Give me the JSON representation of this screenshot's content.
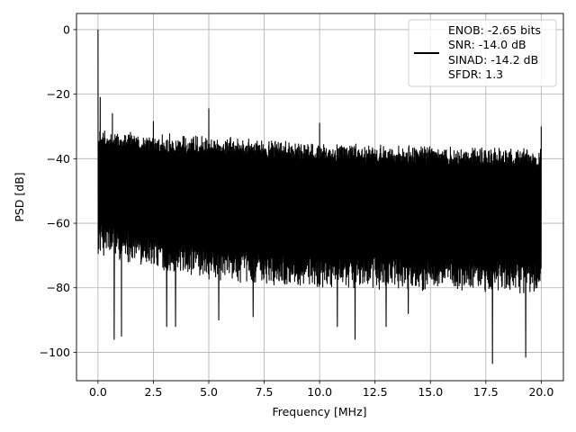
{
  "chart_data": {
    "type": "line",
    "title": "",
    "xlabel": "Frequency [MHz]",
    "ylabel": "PSD [dB]",
    "xlim": [
      -0.97,
      21.0
    ],
    "ylim": [
      -108.8,
      5.0
    ],
    "xticks": [
      0.0,
      2.5,
      5.0,
      7.5,
      10.0,
      12.5,
      15.0,
      17.5,
      20.0
    ],
    "xtick_labels": [
      "0.0",
      "2.5",
      "5.0",
      "7.5",
      "10.0",
      "12.5",
      "15.0",
      "17.5",
      "20.0"
    ],
    "yticks": [
      0,
      -20,
      -40,
      -60,
      -80,
      -100
    ],
    "ytick_labels": [
      "0",
      "−20",
      "−40",
      "−60",
      "−80",
      "−100"
    ],
    "grid": true,
    "legend_position": "top-right",
    "legend": {
      "lines": [
        "ENOB: -2.65 bits",
        "SNR: -14.0 dB",
        "SINAD: -14.2 dB",
        "SFDR: 1.3"
      ]
    },
    "series": [
      {
        "color": "#000000",
        "x_range": [
          0.0,
          20.0
        ],
        "noise": {
          "upper_envelope": [
            [
              0.1,
              -31
            ],
            [
              5.0,
              -33
            ],
            [
              10.0,
              -35
            ],
            [
              15.0,
              -36
            ],
            [
              20.0,
              -37
            ]
          ],
          "lower_envelope": [
            [
              0.1,
              -70
            ],
            [
              5.0,
              -78
            ],
            [
              10.0,
              -80
            ],
            [
              15.0,
              -81
            ],
            [
              20.0,
              -82
            ]
          ]
        },
        "peaks": [
          {
            "x": 0.0,
            "y": 0.0
          },
          {
            "x": 0.1,
            "y": -21
          },
          {
            "x": 0.65,
            "y": -26
          },
          {
            "x": 2.5,
            "y": -28.5
          },
          {
            "x": 5.0,
            "y": -24.5
          },
          {
            "x": 10.0,
            "y": -29
          },
          {
            "x": 20.0,
            "y": -30
          }
        ],
        "troughs": [
          {
            "x": 0.73,
            "y": -96
          },
          {
            "x": 1.06,
            "y": -95
          },
          {
            "x": 3.1,
            "y": -92
          },
          {
            "x": 3.5,
            "y": -92
          },
          {
            "x": 5.45,
            "y": -90
          },
          {
            "x": 7.0,
            "y": -89
          },
          {
            "x": 10.8,
            "y": -92
          },
          {
            "x": 11.6,
            "y": -96
          },
          {
            "x": 13.0,
            "y": -92
          },
          {
            "x": 14.0,
            "y": -88
          },
          {
            "x": 17.8,
            "y": -103.5
          },
          {
            "x": 19.3,
            "y": -101.5
          }
        ]
      }
    ]
  }
}
